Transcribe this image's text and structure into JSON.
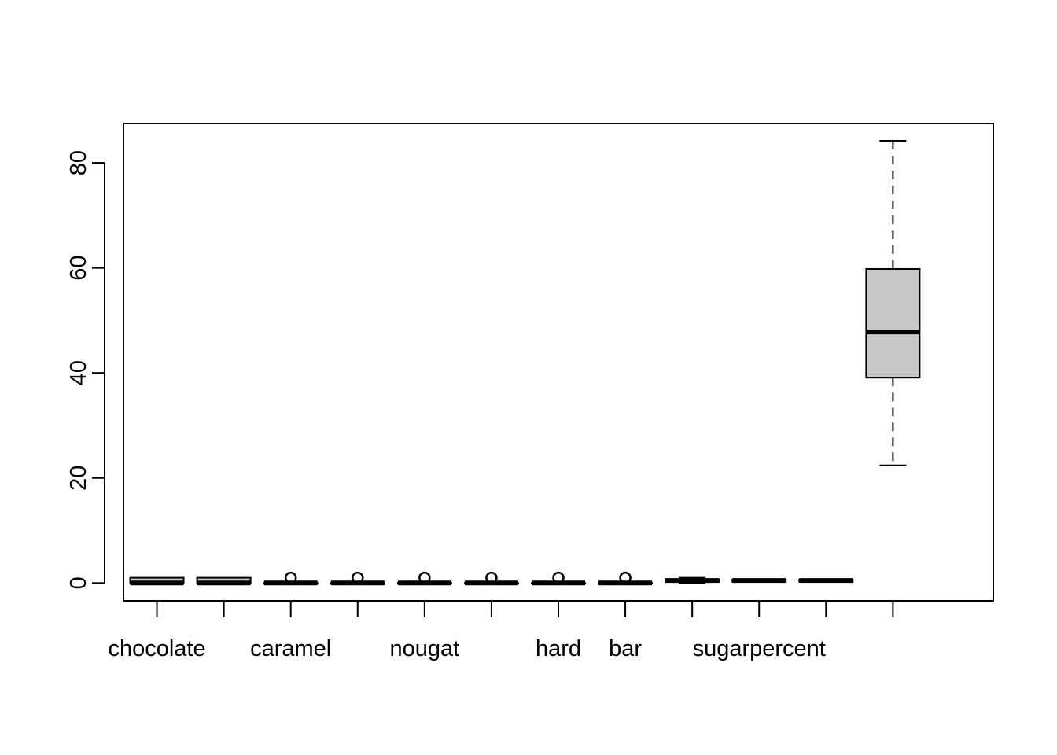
{
  "chart_data": {
    "type": "box",
    "title": "",
    "xlabel": "",
    "ylabel": "",
    "ylim": [
      -3.4,
      87.5
    ],
    "yticks": [
      0,
      20,
      40,
      60,
      80
    ],
    "grid": false,
    "legend": "none",
    "colors": {
      "box_fill": "#c8c8c8",
      "stroke": "#000000",
      "background": "#ffffff"
    },
    "x_tick_labels": [
      "chocolate",
      "",
      "caramel",
      "",
      "nougat",
      "",
      "hard",
      "bar",
      "",
      "sugarpercent",
      "",
      ""
    ],
    "boxes": [
      {
        "min": 0,
        "q1": 0,
        "median": 0,
        "q3": 1,
        "max": 1,
        "outliers": []
      },
      {
        "min": 0,
        "q1": 0,
        "median": 0,
        "q3": 1,
        "max": 1,
        "outliers": []
      },
      {
        "min": 0,
        "q1": 0,
        "median": 0,
        "q3": 0,
        "max": 0,
        "outliers": [
          1
        ]
      },
      {
        "min": 0,
        "q1": 0,
        "median": 0,
        "q3": 0,
        "max": 0,
        "outliers": [
          1
        ]
      },
      {
        "min": 0,
        "q1": 0,
        "median": 0,
        "q3": 0,
        "max": 0,
        "outliers": [
          1
        ]
      },
      {
        "min": 0,
        "q1": 0,
        "median": 0,
        "q3": 0,
        "max": 0,
        "outliers": [
          1
        ]
      },
      {
        "min": 0,
        "q1": 0,
        "median": 0,
        "q3": 0,
        "max": 0,
        "outliers": [
          1
        ]
      },
      {
        "min": 0,
        "q1": 0,
        "median": 0,
        "q3": 0,
        "max": 0,
        "outliers": [
          1
        ]
      },
      {
        "min": 0.01,
        "q1": 0.22,
        "median": 0.47,
        "q3": 0.73,
        "max": 0.99,
        "outliers": []
      },
      {
        "min": 0.26,
        "q1": 0.26,
        "median": 0.47,
        "q3": 0.65,
        "max": 0.65,
        "outliers": []
      },
      {
        "min": 0.26,
        "q1": 0.26,
        "median": 0.47,
        "q3": 0.65,
        "max": 0.65,
        "outliers": []
      },
      {
        "min": 22.4,
        "q1": 39.1,
        "median": 47.8,
        "q3": 59.8,
        "max": 84.2,
        "outliers": []
      }
    ]
  }
}
